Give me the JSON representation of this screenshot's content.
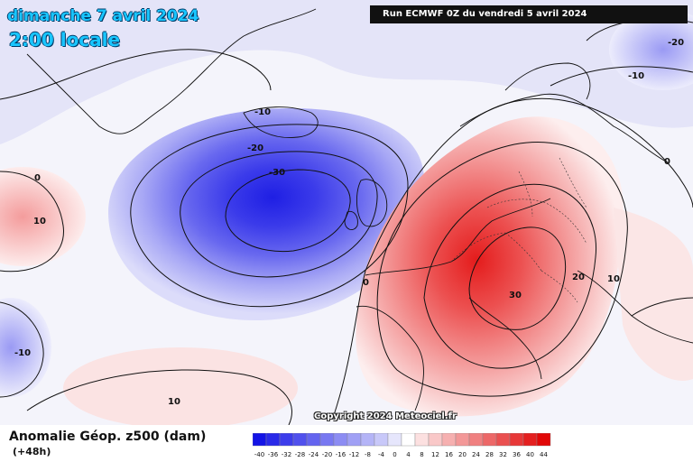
{
  "header": {
    "date_label": "dimanche 7 avril 2024",
    "time_label": "2:00 locale",
    "run_label": "Run ECMWF 0Z du vendredi 5 avril 2024"
  },
  "footer": {
    "title": "Anomalie Géop. z500 (dam)",
    "lead": "(+48h)",
    "copyright": "Copyright 2024 Meteociel.fr"
  },
  "colors": {
    "ocean_bg": "#f2f2fb",
    "negative_core": "#2a2ae6",
    "positive_core": "#e81a1a",
    "contour": "#111111"
  },
  "scale": {
    "ticks": [
      "-40",
      "-36",
      "-32",
      "-28",
      "-24",
      "-20",
      "-16",
      "-12",
      "-8",
      "-4",
      "0",
      "4",
      "8",
      "12",
      "16",
      "20",
      "24",
      "28",
      "32",
      "36",
      "40",
      "44"
    ],
    "colors": [
      "#1414e6",
      "#2a2ae8",
      "#3d3deb",
      "#5050ed",
      "#6464ef",
      "#7878f1",
      "#8c8cf3",
      "#a0a0f5",
      "#b4b4f7",
      "#c8c8f9",
      "#e6e6fc",
      "#ffffff",
      "#fce0e0",
      "#f9c8c8",
      "#f6b0b0",
      "#f39898",
      "#f08080",
      "#ed6868",
      "#ea5050",
      "#e73838",
      "#e42020",
      "#e10808"
    ]
  },
  "contour_labels": [
    {
      "text": "-10",
      "id": "greenland-low"
    },
    {
      "text": "-20",
      "id": "low-mid"
    },
    {
      "text": "-30",
      "id": "low-core"
    },
    {
      "text": "0",
      "id": "atlantic-zero"
    },
    {
      "text": "0",
      "id": "west-zero"
    },
    {
      "text": "10",
      "id": "west-pos"
    },
    {
      "text": "-10",
      "id": "sw-neg"
    },
    {
      "text": "10",
      "id": "south-pos"
    },
    {
      "text": "30",
      "id": "europe-core"
    },
    {
      "text": "20",
      "id": "europe-mid"
    },
    {
      "text": "10",
      "id": "europe-outer"
    },
    {
      "text": "0",
      "id": "east-zero"
    },
    {
      "text": "-10",
      "id": "ne-neg"
    },
    {
      "text": "-20",
      "id": "ne-neg2"
    }
  ]
}
